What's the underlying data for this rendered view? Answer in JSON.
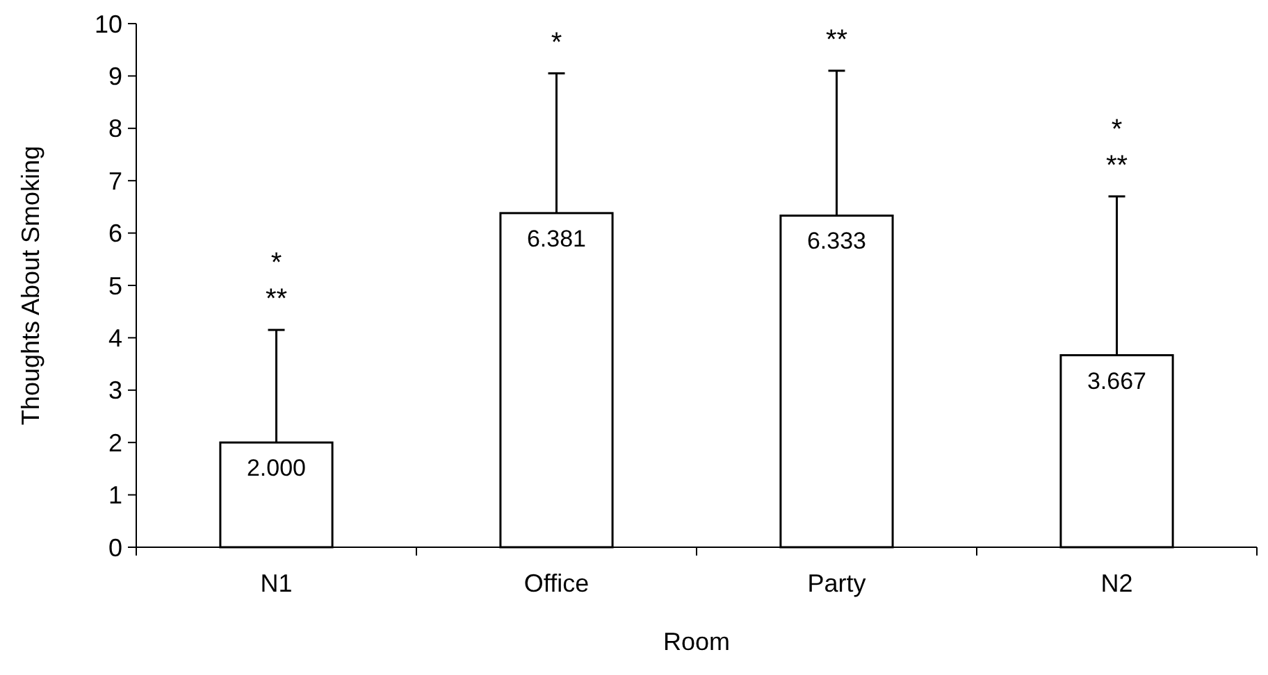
{
  "chart_data": {
    "type": "bar",
    "xlabel": "Room",
    "ylabel": "Thoughts About Smoking",
    "categories": [
      "N1",
      "Office",
      "Party",
      "N2"
    ],
    "values": [
      2.0,
      6.381,
      6.333,
      3.667
    ],
    "value_labels": [
      "2.000",
      "6.381",
      "6.333",
      "3.667"
    ],
    "errors": [
      [
        2.0,
        4.15
      ],
      [
        6.381,
        9.05
      ],
      [
        6.333,
        9.1
      ],
      [
        3.667,
        6.7
      ]
    ],
    "color": "#ffffff",
    "ylim": [
      0,
      10
    ],
    "yticks": [
      0,
      1,
      2,
      3,
      4,
      5,
      6,
      7,
      8,
      9,
      10
    ],
    "grid": false,
    "annotations": [
      "*",
      "**",
      "*",
      "**",
      "*",
      "**"
    ]
  }
}
